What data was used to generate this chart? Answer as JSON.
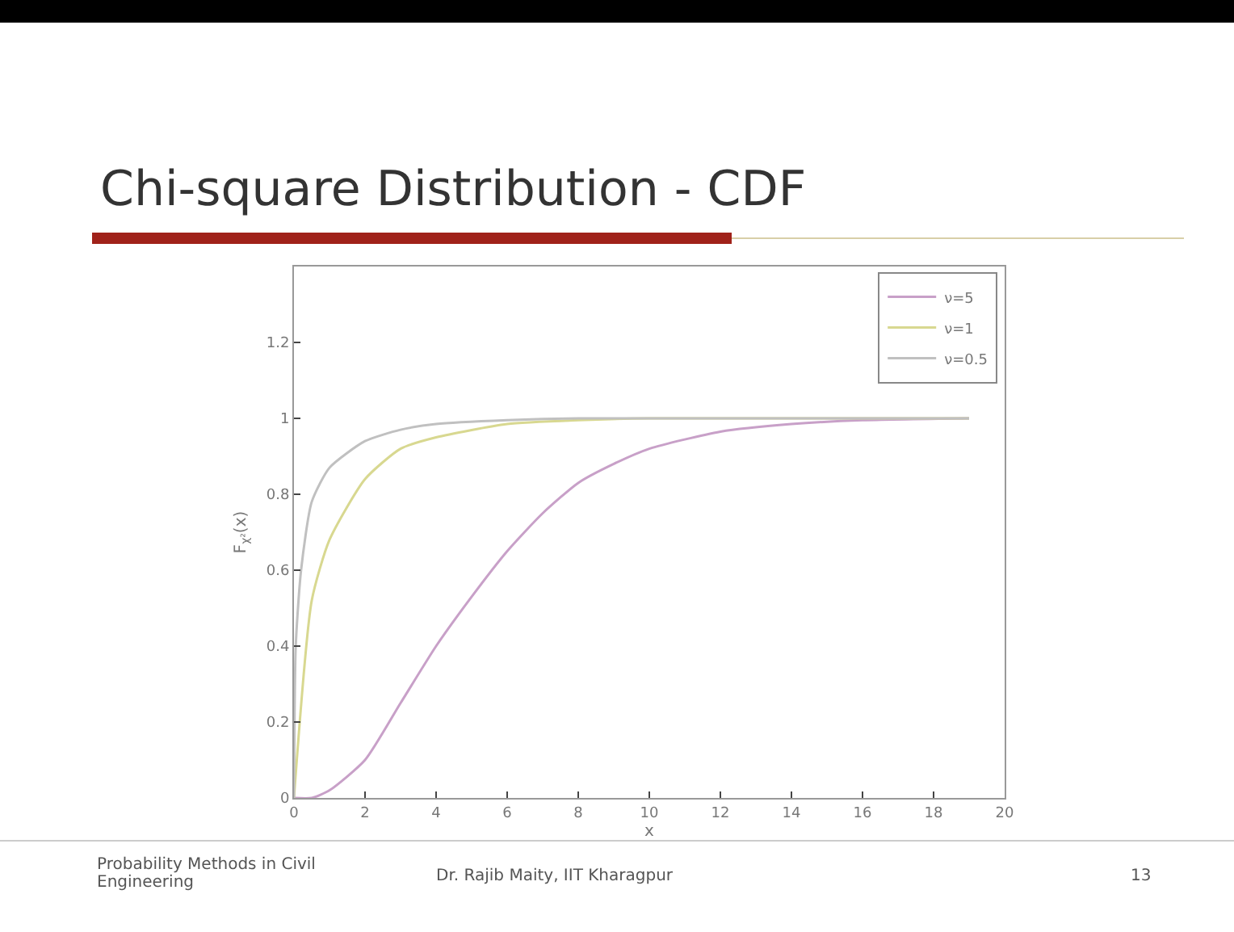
{
  "chart_data": {
    "type": "line",
    "title": "Chi-square Distribution - CDF",
    "xlabel": "x",
    "ylabel": "F$_{χ²}$(x)",
    "xlim": [
      0,
      20
    ],
    "xticks": [
      0,
      2,
      4,
      6,
      8,
      10,
      12,
      14,
      16,
      18,
      20
    ],
    "ylim": [
      0,
      1.4
    ],
    "yticks": [
      0,
      0.2,
      0.4,
      0.6,
      0.8,
      1,
      1.2
    ],
    "grid": false,
    "legend": "top right",
    "line_style": "solid",
    "marker": "none",
    "series": [
      {
        "name": "ν=5",
        "color": "#c8a0c8",
        "x": [
          0,
          0.5,
          1,
          2,
          3,
          4,
          5,
          6,
          7,
          8,
          9,
          10,
          12,
          14,
          16,
          19
        ],
        "values": [
          0,
          0,
          0.02,
          0.1,
          0.25,
          0.4,
          0.53,
          0.65,
          0.75,
          0.83,
          0.88,
          0.92,
          0.965,
          0.985,
          0.995,
          1
        ]
      },
      {
        "name": "ν=1",
        "color": "#d8d890",
        "x": [
          0,
          0.5,
          1,
          2,
          3,
          4,
          6,
          8,
          10,
          19
        ],
        "values": [
          0,
          0.52,
          0.68,
          0.84,
          0.92,
          0.95,
          0.985,
          0.995,
          1,
          1
        ]
      },
      {
        "name": "ν=0.5",
        "color": "#c0c0c0",
        "x": [
          0,
          0.05,
          0.2,
          0.5,
          1,
          2,
          3,
          4,
          6,
          8,
          19
        ],
        "values": [
          0,
          0.4,
          0.6,
          0.78,
          0.87,
          0.94,
          0.97,
          0.985,
          0.995,
          1,
          1
        ]
      }
    ],
    "annotations": [
      "Probability Methods in Civil Engineering",
      "Dr. Rajib Maity, IIT Kharagpur",
      "13"
    ]
  }
}
